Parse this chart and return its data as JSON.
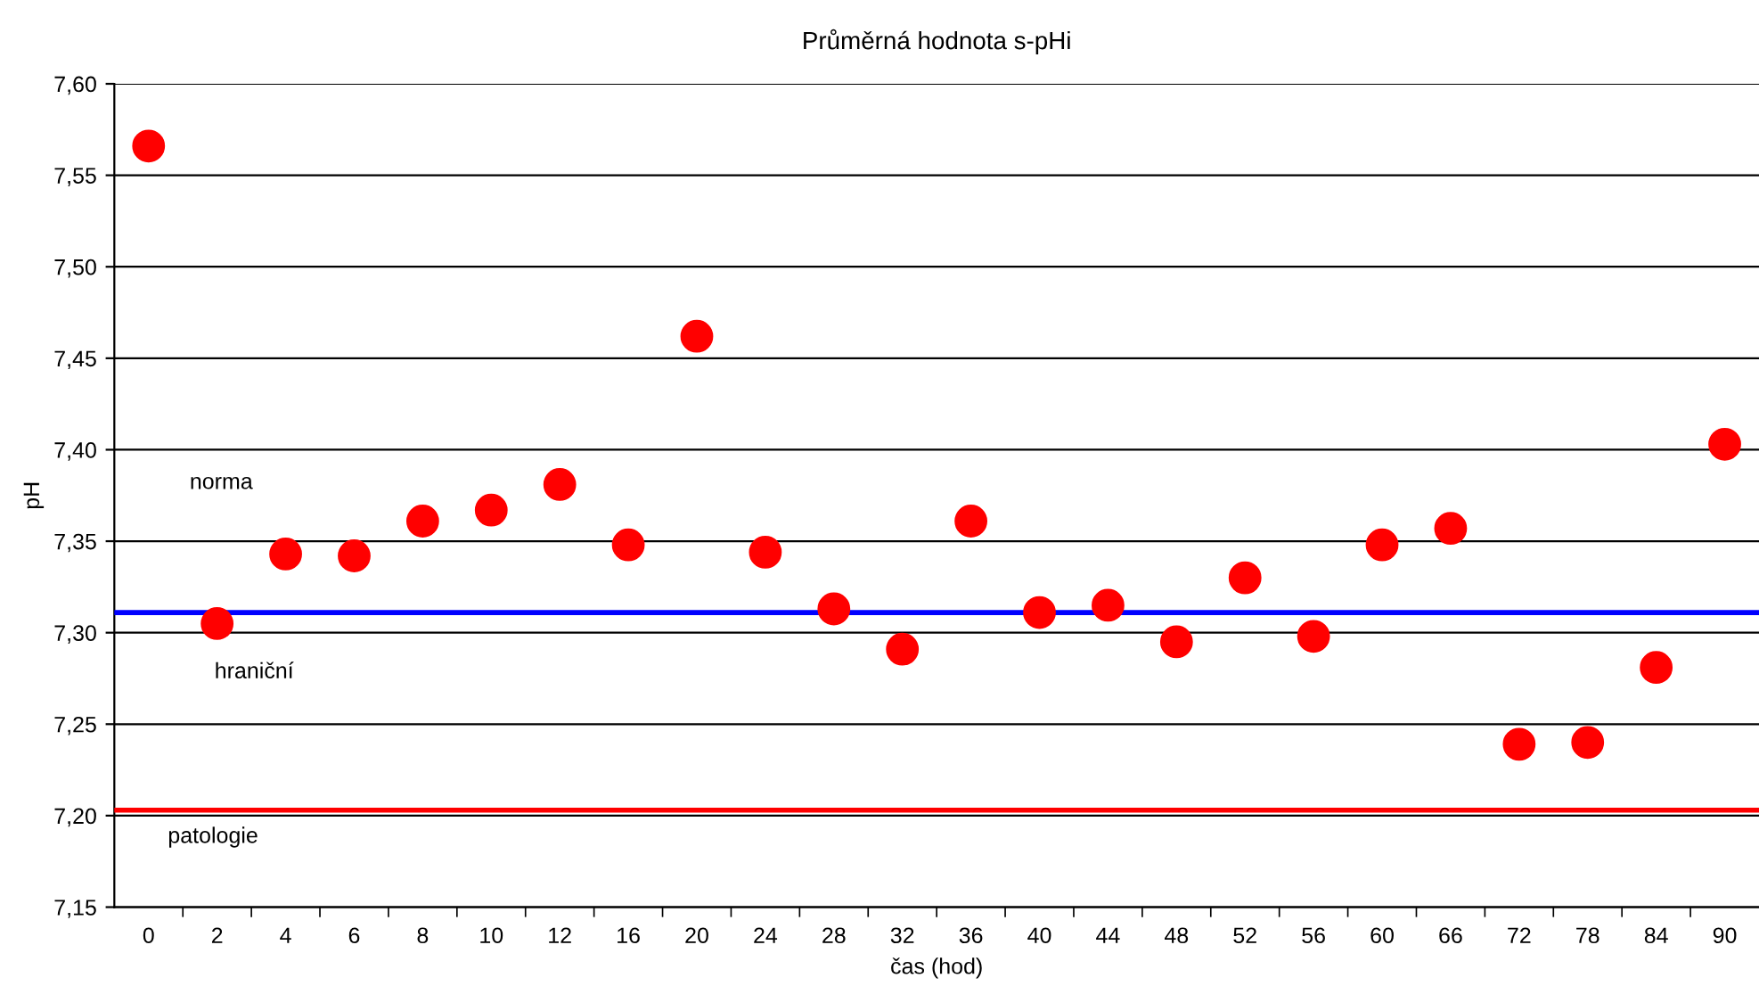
{
  "chart_data": {
    "type": "scatter",
    "title": "Průměrná hodnota s-pHi",
    "xlabel": "čas (hod)",
    "ylabel": "pH",
    "categories": [
      "0",
      "2",
      "4",
      "6",
      "8",
      "10",
      "12",
      "16",
      "20",
      "24",
      "28",
      "32",
      "36",
      "40",
      "44",
      "48",
      "52",
      "56",
      "60",
      "66",
      "72",
      "78",
      "84",
      "90"
    ],
    "series": [
      {
        "color": "#ff0000",
        "values": [
          7.566,
          7.305,
          7.343,
          7.342,
          7.361,
          7.367,
          7.381,
          7.348,
          7.462,
          7.344,
          7.313,
          7.291,
          7.361,
          7.311,
          7.315,
          7.295,
          7.33,
          7.298,
          7.348,
          7.357,
          7.239,
          7.24,
          7.281,
          7.403
        ]
      }
    ],
    "marker": "circle",
    "grid": "y",
    "legend": false,
    "ylim": [
      7.15,
      7.6
    ],
    "yticks": [
      {
        "value": 7.15,
        "label": "7,15"
      },
      {
        "value": 7.2,
        "label": "7,20"
      },
      {
        "value": 7.25,
        "label": "7,25"
      },
      {
        "value": 7.3,
        "label": "7,30"
      },
      {
        "value": 7.35,
        "label": "7,35"
      },
      {
        "value": 7.4,
        "label": "7,40"
      },
      {
        "value": 7.45,
        "label": "7,45"
      },
      {
        "value": 7.5,
        "label": "7,50"
      },
      {
        "value": 7.55,
        "label": "7,55"
      },
      {
        "value": 7.6,
        "label": "7,60"
      }
    ],
    "ref_lines": [
      {
        "axis": "y",
        "value": 7.311,
        "color": "#0000ff",
        "line_style": "solid"
      },
      {
        "axis": "y",
        "value": 7.203,
        "color": "#ff0000",
        "line_style": "solid"
      }
    ],
    "annotations": [
      "norma",
      "hraniční",
      "patologie"
    ]
  }
}
